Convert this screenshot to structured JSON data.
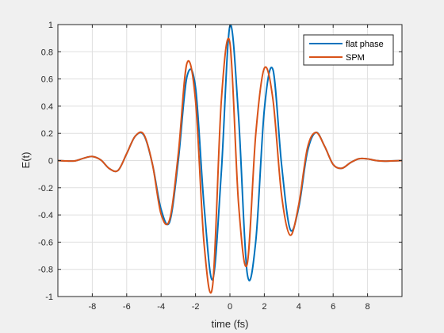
{
  "chart_data": {
    "type": "line",
    "title": "",
    "xlabel": "time (fs)",
    "ylabel": "E(t)",
    "xlim": [
      -10,
      10
    ],
    "ylim": [
      -1,
      1
    ],
    "xticks": [
      -8,
      -6,
      -4,
      -2,
      0,
      2,
      4,
      6,
      8
    ],
    "yticks": [
      -1,
      -0.8,
      -0.6,
      -0.4,
      -0.2,
      0,
      0.2,
      0.4,
      0.6,
      0.8,
      1
    ],
    "grid": true,
    "legend_position": "top-right",
    "series": [
      {
        "name": "flat phase",
        "color": "#0072BD",
        "x": [
          -10,
          -9.5,
          -9,
          -8.5,
          -8,
          -7.5,
          -7,
          -6.5,
          -6,
          -5.5,
          -5,
          -4.5,
          -4,
          -3.5,
          -3,
          -2.5,
          -2,
          -1.5,
          -1,
          -0.5,
          0,
          0.5,
          1,
          1.5,
          2,
          2.5,
          3,
          3.5,
          4,
          4.5,
          5,
          5.5,
          6,
          6.5,
          7,
          7.5,
          8,
          8.5,
          9,
          9.5,
          10
        ],
        "values": [
          0.0,
          -0.003,
          -0.002,
          0.017,
          0.03,
          0.004,
          -0.06,
          -0.072,
          0.051,
          0.18,
          0.186,
          -0.029,
          -0.359,
          -0.45,
          0.003,
          0.615,
          0.538,
          -0.338,
          -0.874,
          -0.086,
          0.99,
          0.325,
          -0.826,
          -0.596,
          0.375,
          0.669,
          -0.028,
          -0.505,
          -0.344,
          0.063,
          0.207,
          0.106,
          -0.029,
          -0.057,
          -0.016,
          0.013,
          0.012,
          0.0,
          -0.004,
          -0.002,
          0.0
        ]
      },
      {
        "name": "SPM",
        "color": "#D95319",
        "x": [
          -10,
          -9.5,
          -9,
          -8.5,
          -8,
          -7.5,
          -7,
          -6.5,
          -6,
          -5.5,
          -5,
          -4.5,
          -4,
          -3.5,
          -3,
          -2.5,
          -2,
          -1.5,
          -1,
          -0.5,
          0,
          0.5,
          1,
          1.5,
          2,
          2.5,
          3,
          3.5,
          4,
          4.5,
          5,
          5.5,
          6,
          6.5,
          7,
          7.5,
          8,
          8.5,
          9,
          9.5,
          10
        ],
        "values": [
          0.0,
          -0.003,
          -0.002,
          0.017,
          0.03,
          0.004,
          -0.06,
          -0.072,
          0.051,
          0.18,
          0.191,
          -0.029,
          -0.395,
          -0.432,
          0.051,
          0.715,
          0.441,
          -0.617,
          -0.914,
          0.44,
          0.865,
          -0.315,
          -0.763,
          0.192,
          0.679,
          0.45,
          -0.252,
          -0.549,
          -0.324,
          0.09,
          0.207,
          0.106,
          -0.029,
          -0.057,
          -0.016,
          0.013,
          0.012,
          0.0,
          -0.004,
          -0.002,
          0.0
        ]
      }
    ]
  }
}
